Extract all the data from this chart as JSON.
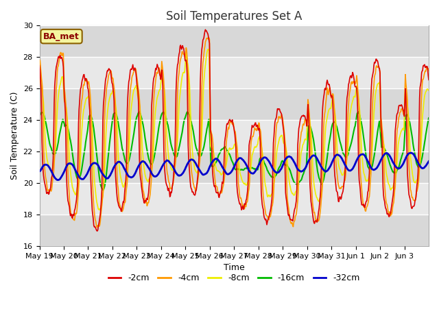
{
  "title": "Soil Temperatures Set A",
  "xlabel": "Time",
  "ylabel": "Soil Temperature (C)",
  "ylim": [
    16,
    30
  ],
  "n_days": 16,
  "annotation": "BA_met",
  "legend_labels": [
    "-2cm",
    "-4cm",
    "-8cm",
    "-16cm",
    "-32cm"
  ],
  "line_colors": [
    "#dd0000",
    "#ff9900",
    "#eeee00",
    "#00bb00",
    "#0000cc"
  ],
  "line_widths": [
    1.2,
    1.2,
    1.2,
    1.5,
    2.0
  ],
  "fig_bg_color": "#ffffff",
  "plot_bg_color": "#e0e0e0",
  "tick_labels": [
    "May 19",
    "May 20",
    "May 21",
    "May 22",
    "May 23",
    "May 24",
    "May 25",
    "May 26",
    "May 27",
    "May 28",
    "May 29",
    "May 30",
    "May 31",
    "Jun 1",
    "Jun 2",
    "Jun 3"
  ],
  "grid_color": "#ffffff",
  "title_fontsize": 12,
  "axis_fontsize": 9,
  "tick_fontsize": 8,
  "legend_fontsize": 9,
  "band_colors": [
    "#d8d8d8",
    "#e8e8e8"
  ],
  "yticks": [
    16,
    18,
    20,
    22,
    24,
    26,
    28,
    30
  ]
}
